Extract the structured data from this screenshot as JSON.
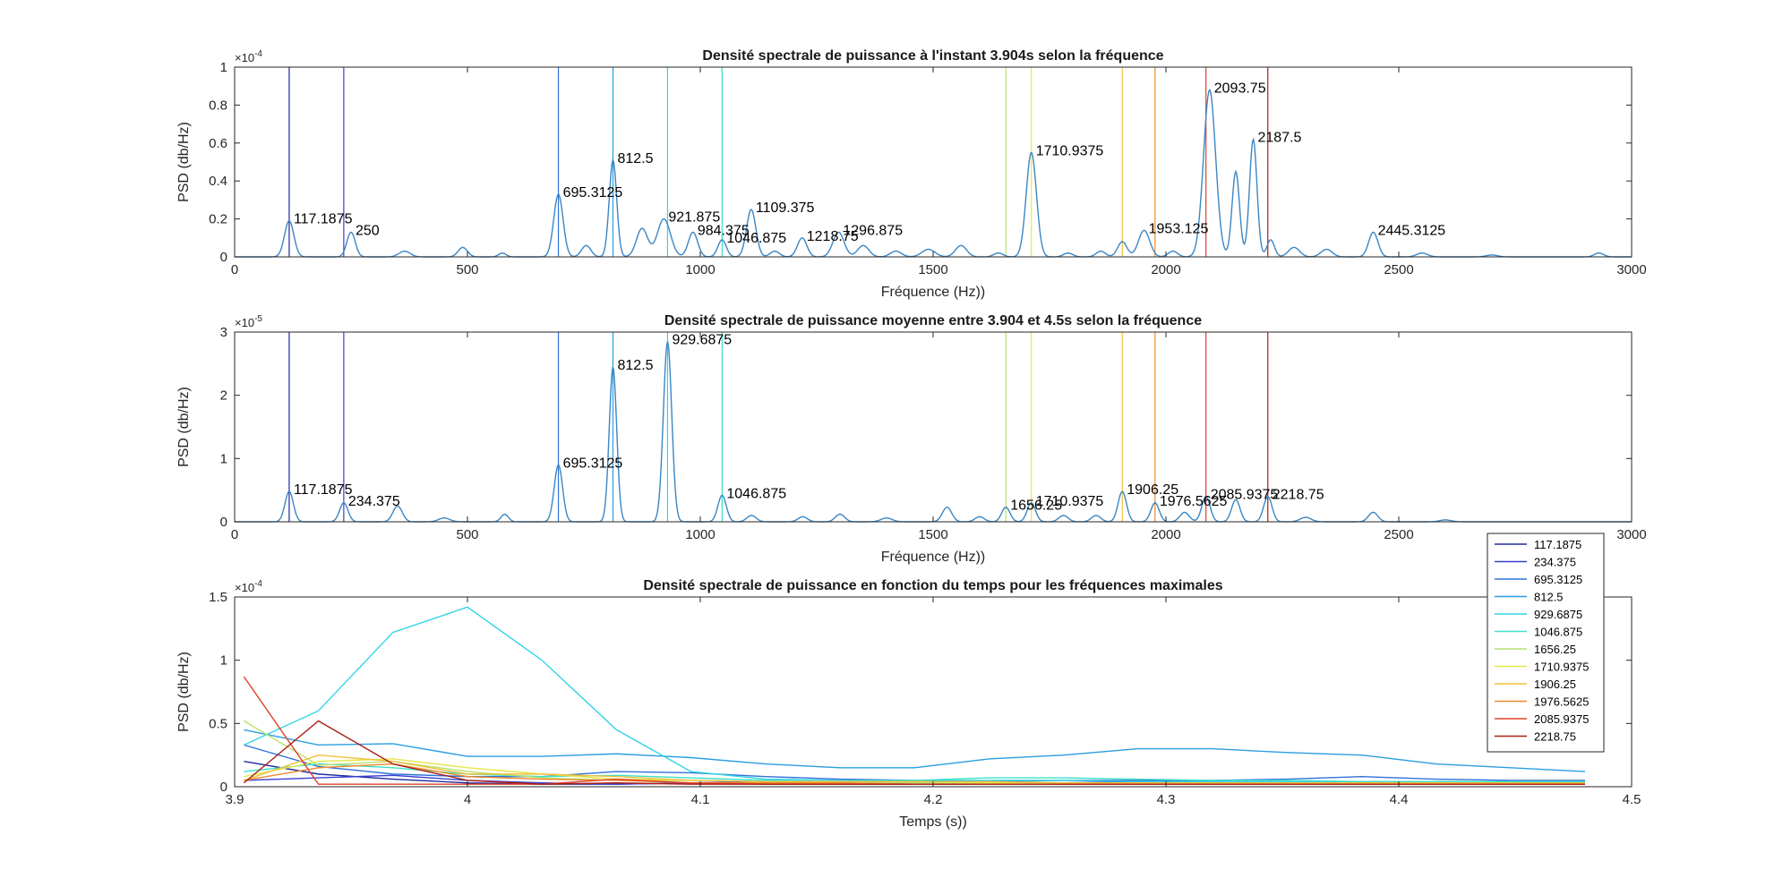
{
  "window_title": "",
  "colors": {
    "psd_line": "#3b86c4",
    "marker_lines": [
      "#1e2a9a",
      "#3a3fd0",
      "#2f72d8",
      "#2a9ee0",
      "#33d4e6",
      "#3ee0c8",
      "#b8e070",
      "#e6e64a",
      "#f0c03a",
      "#f08a2a",
      "#e2402a",
      "#a81e14"
    ]
  },
  "chart_data": [
    {
      "type": "line",
      "title": "Densité spectrale de puissance à l'instant 3.904s selon la fréquence",
      "xlabel": "Fréquence (Hz))",
      "ylabel": "PSD (db/Hz)",
      "exponent_label": "×10",
      "exponent_power": "-4",
      "xlim": [
        0,
        3000
      ],
      "ylim": [
        0,
        1
      ],
      "xticks": [
        "0",
        "500",
        "1000",
        "1500",
        "2000",
        "2500",
        "3000"
      ],
      "yticks": [
        "0",
        "0.2",
        "0.4",
        "0.6",
        "0.8",
        "1"
      ],
      "markers": [
        117.1875,
        234.375,
        695.3125,
        812.5,
        929.6875,
        1046.875,
        1656.25,
        1710.9375,
        1906.25,
        1976.5625,
        2085.9375,
        2218.75
      ],
      "peaks": [
        {
          "x": 117.1875,
          "y": 0.19,
          "w": 10
        },
        {
          "x": 250,
          "y": 0.13,
          "w": 9
        },
        {
          "x": 365,
          "y": 0.03,
          "w": 12
        },
        {
          "x": 490,
          "y": 0.05,
          "w": 10
        },
        {
          "x": 575,
          "y": 0.02,
          "w": 8
        },
        {
          "x": 695.3125,
          "y": 0.33,
          "w": 10
        },
        {
          "x": 755,
          "y": 0.06,
          "w": 10
        },
        {
          "x": 812.5,
          "y": 0.51,
          "w": 8
        },
        {
          "x": 875,
          "y": 0.15,
          "w": 12
        },
        {
          "x": 921.875,
          "y": 0.2,
          "w": 14
        },
        {
          "x": 984.375,
          "y": 0.13,
          "w": 10
        },
        {
          "x": 1046.875,
          "y": 0.09,
          "w": 9
        },
        {
          "x": 1109.375,
          "y": 0.25,
          "w": 10
        },
        {
          "x": 1160,
          "y": 0.03,
          "w": 10
        },
        {
          "x": 1218.75,
          "y": 0.1,
          "w": 10
        },
        {
          "x": 1296.875,
          "y": 0.13,
          "w": 12
        },
        {
          "x": 1350,
          "y": 0.06,
          "w": 12
        },
        {
          "x": 1420,
          "y": 0.03,
          "w": 12
        },
        {
          "x": 1490,
          "y": 0.04,
          "w": 14
        },
        {
          "x": 1560,
          "y": 0.06,
          "w": 12
        },
        {
          "x": 1640,
          "y": 0.02,
          "w": 10
        },
        {
          "x": 1710.9375,
          "y": 0.55,
          "w": 11
        },
        {
          "x": 1790,
          "y": 0.02,
          "w": 10
        },
        {
          "x": 1860,
          "y": 0.03,
          "w": 10
        },
        {
          "x": 1906.25,
          "y": 0.08,
          "w": 10
        },
        {
          "x": 1953.125,
          "y": 0.14,
          "w": 12
        },
        {
          "x": 2015,
          "y": 0.03,
          "w": 10
        },
        {
          "x": 2093.75,
          "y": 0.88,
          "w": 13
        },
        {
          "x": 2150,
          "y": 0.45,
          "w": 8
        },
        {
          "x": 2187.5,
          "y": 0.62,
          "w": 8
        },
        {
          "x": 2225,
          "y": 0.09,
          "w": 8
        },
        {
          "x": 2275,
          "y": 0.05,
          "w": 12
        },
        {
          "x": 2345,
          "y": 0.04,
          "w": 12
        },
        {
          "x": 2445.3125,
          "y": 0.13,
          "w": 10
        },
        {
          "x": 2550,
          "y": 0.02,
          "w": 12
        },
        {
          "x": 2700,
          "y": 0.01,
          "w": 12
        },
        {
          "x": 2930,
          "y": 0.02,
          "w": 10
        }
      ],
      "annotations": [
        {
          "text": "117.1875",
          "x": 117.1875,
          "y": 0.19
        },
        {
          "text": "250",
          "x": 250,
          "y": 0.13
        },
        {
          "text": "695.3125",
          "x": 695.3125,
          "y": 0.33
        },
        {
          "text": "812.5",
          "x": 812.5,
          "y": 0.51
        },
        {
          "text": "921.875",
          "x": 921.875,
          "y": 0.2
        },
        {
          "text": "984.375",
          "x": 984.375,
          "y": 0.13
        },
        {
          "text": "1046.875",
          "x": 1046.875,
          "y": 0.09
        },
        {
          "text": "1109.375",
          "x": 1109.375,
          "y": 0.25
        },
        {
          "text": "1218.75",
          "x": 1218.75,
          "y": 0.1
        },
        {
          "text": "1296.875",
          "x": 1296.875,
          "y": 0.13
        },
        {
          "text": "1710.9375",
          "x": 1710.9375,
          "y": 0.55
        },
        {
          "text": "1953.125",
          "x": 1953.125,
          "y": 0.14
        },
        {
          "text": "2093.75",
          "x": 2093.75,
          "y": 0.88
        },
        {
          "text": "2187.5",
          "x": 2187.5,
          "y": 0.62
        },
        {
          "text": "2445.3125",
          "x": 2445.3125,
          "y": 0.13
        }
      ]
    },
    {
      "type": "line",
      "title": "Densité spectrale de puissance moyenne entre 3.904 et 4.5s selon la fréquence",
      "xlabel": "Fréquence (Hz))",
      "ylabel": "PSD (db/Hz)",
      "exponent_label": "×10",
      "exponent_power": "-5",
      "xlim": [
        0,
        3000
      ],
      "ylim": [
        0,
        3
      ],
      "xticks": [
        "0",
        "500",
        "1000",
        "1500",
        "2000",
        "2500",
        "3000"
      ],
      "yticks": [
        "0",
        "1",
        "2",
        "3"
      ],
      "markers": [
        117.1875,
        234.375,
        695.3125,
        812.5,
        929.6875,
        1046.875,
        1656.25,
        1710.9375,
        1906.25,
        1976.5625,
        2085.9375,
        2218.75
      ],
      "peaks": [
        {
          "x": 117.1875,
          "y": 0.48,
          "w": 9
        },
        {
          "x": 234.375,
          "y": 0.3,
          "w": 9
        },
        {
          "x": 350,
          "y": 0.25,
          "w": 10
        },
        {
          "x": 450,
          "y": 0.06,
          "w": 12
        },
        {
          "x": 580,
          "y": 0.12,
          "w": 8
        },
        {
          "x": 695.3125,
          "y": 0.9,
          "w": 9
        },
        {
          "x": 812.5,
          "y": 2.45,
          "w": 8
        },
        {
          "x": 929.6875,
          "y": 2.85,
          "w": 9
        },
        {
          "x": 1046.875,
          "y": 0.42,
          "w": 9
        },
        {
          "x": 1110,
          "y": 0.1,
          "w": 10
        },
        {
          "x": 1220,
          "y": 0.08,
          "w": 10
        },
        {
          "x": 1300,
          "y": 0.12,
          "w": 10
        },
        {
          "x": 1400,
          "y": 0.06,
          "w": 12
        },
        {
          "x": 1530,
          "y": 0.23,
          "w": 10
        },
        {
          "x": 1600,
          "y": 0.08,
          "w": 10
        },
        {
          "x": 1656.25,
          "y": 0.23,
          "w": 9
        },
        {
          "x": 1710.9375,
          "y": 0.3,
          "w": 9
        },
        {
          "x": 1780,
          "y": 0.1,
          "w": 10
        },
        {
          "x": 1850,
          "y": 0.1,
          "w": 10
        },
        {
          "x": 1906.25,
          "y": 0.48,
          "w": 9
        },
        {
          "x": 1976.5625,
          "y": 0.3,
          "w": 9
        },
        {
          "x": 2040,
          "y": 0.15,
          "w": 10
        },
        {
          "x": 2085.9375,
          "y": 0.4,
          "w": 9
        },
        {
          "x": 2150,
          "y": 0.35,
          "w": 9
        },
        {
          "x": 2218.75,
          "y": 0.4,
          "w": 9
        },
        {
          "x": 2300,
          "y": 0.07,
          "w": 12
        },
        {
          "x": 2445,
          "y": 0.15,
          "w": 10
        },
        {
          "x": 2600,
          "y": 0.03,
          "w": 12
        }
      ],
      "annotations": [
        {
          "text": "117.1875",
          "x": 117.1875,
          "y": 0.48
        },
        {
          "text": "234.375",
          "x": 234.375,
          "y": 0.3
        },
        {
          "text": "695.3125",
          "x": 695.3125,
          "y": 0.9
        },
        {
          "text": "812.5",
          "x": 812.5,
          "y": 2.45
        },
        {
          "text": "929.6875",
          "x": 929.6875,
          "y": 2.85
        },
        {
          "text": "1046.875",
          "x": 1046.875,
          "y": 0.42
        },
        {
          "text": "1656.25",
          "x": 1656.25,
          "y": 0.23
        },
        {
          "text": "1710.9375",
          "x": 1710.9375,
          "y": 0.3
        },
        {
          "text": "1906.25",
          "x": 1906.25,
          "y": 0.48
        },
        {
          "text": "1976.5625",
          "x": 1976.5625,
          "y": 0.3
        },
        {
          "text": "2085.9375",
          "x": 2085.9375,
          "y": 0.4
        },
        {
          "text": "2218.75",
          "x": 2218.75,
          "y": 0.4
        }
      ]
    },
    {
      "type": "line",
      "title": "Densité spectrale de puissance en fonction du temps pour les fréquences maximales",
      "xlabel": "Temps (s))",
      "ylabel": "PSD (db/Hz)",
      "exponent_label": "×10",
      "exponent_power": "-4",
      "xlim": [
        3.9,
        4.5
      ],
      "ylim": [
        0,
        1.5
      ],
      "xticks": [
        "3.9",
        "4",
        "4.1",
        "4.2",
        "4.3",
        "4.4",
        "4.5"
      ],
      "yticks": [
        "0",
        "0.5",
        "1",
        "1.5"
      ],
      "legend": "top-right",
      "x": [
        3.904,
        3.936,
        3.968,
        4.0,
        4.032,
        4.064,
        4.096,
        4.128,
        4.16,
        4.192,
        4.224,
        4.256,
        4.288,
        4.32,
        4.352,
        4.384,
        4.416,
        4.448,
        4.48
      ],
      "series": [
        {
          "name": "117.1875",
          "values": [
            0.2,
            0.1,
            0.06,
            0.03,
            0.02,
            0.02,
            0.03,
            0.02,
            0.02,
            0.02,
            0.02,
            0.02,
            0.02,
            0.02,
            0.02,
            0.02,
            0.02,
            0.02,
            0.02
          ]
        },
        {
          "name": "234.375",
          "values": [
            0.05,
            0.07,
            0.09,
            0.05,
            0.03,
            0.02,
            0.03,
            0.04,
            0.03,
            0.02,
            0.02,
            0.03,
            0.04,
            0.04,
            0.03,
            0.02,
            0.02,
            0.02,
            0.02
          ]
        },
        {
          "name": "695.3125",
          "values": [
            0.33,
            0.16,
            0.1,
            0.08,
            0.08,
            0.12,
            0.11,
            0.08,
            0.06,
            0.05,
            0.04,
            0.05,
            0.05,
            0.05,
            0.06,
            0.08,
            0.06,
            0.05,
            0.05
          ]
        },
        {
          "name": "812.5",
          "values": [
            0.45,
            0.33,
            0.34,
            0.24,
            0.24,
            0.26,
            0.23,
            0.18,
            0.15,
            0.15,
            0.22,
            0.25,
            0.3,
            0.3,
            0.27,
            0.25,
            0.18,
            0.15,
            0.12
          ]
        },
        {
          "name": "929.6875",
          "values": [
            0.33,
            0.6,
            1.22,
            1.42,
            1.0,
            0.45,
            0.12,
            0.06,
            0.05,
            0.05,
            0.05,
            0.05,
            0.04,
            0.04,
            0.04,
            0.04,
            0.04,
            0.04,
            0.04
          ]
        },
        {
          "name": "1046.875",
          "values": [
            0.12,
            0.18,
            0.15,
            0.1,
            0.08,
            0.09,
            0.07,
            0.05,
            0.04,
            0.05,
            0.07,
            0.07,
            0.06,
            0.05,
            0.05,
            0.04,
            0.04,
            0.04,
            0.04
          ]
        },
        {
          "name": "1656.25",
          "values": [
            0.52,
            0.17,
            0.2,
            0.12,
            0.07,
            0.05,
            0.05,
            0.04,
            0.04,
            0.03,
            0.03,
            0.03,
            0.03,
            0.03,
            0.03,
            0.03,
            0.03,
            0.03,
            0.03
          ]
        },
        {
          "name": "1710.9375",
          "values": [
            0.08,
            0.2,
            0.22,
            0.15,
            0.1,
            0.06,
            0.05,
            0.04,
            0.04,
            0.04,
            0.03,
            0.03,
            0.03,
            0.03,
            0.03,
            0.03,
            0.03,
            0.03,
            0.03
          ]
        },
        {
          "name": "1906.25",
          "values": [
            0.05,
            0.25,
            0.2,
            0.1,
            0.1,
            0.08,
            0.05,
            0.04,
            0.04,
            0.04,
            0.04,
            0.03,
            0.03,
            0.03,
            0.03,
            0.03,
            0.03,
            0.03,
            0.03
          ]
        },
        {
          "name": "1976.5625",
          "values": [
            0.05,
            0.15,
            0.18,
            0.08,
            0.06,
            0.05,
            0.03,
            0.03,
            0.03,
            0.02,
            0.02,
            0.02,
            0.02,
            0.02,
            0.02,
            0.02,
            0.02,
            0.02,
            0.02
          ]
        },
        {
          "name": "2085.9375",
          "values": [
            0.87,
            0.02,
            0.02,
            0.02,
            0.02,
            0.06,
            0.03,
            0.02,
            0.02,
            0.02,
            0.02,
            0.02,
            0.02,
            0.02,
            0.02,
            0.02,
            0.02,
            0.02,
            0.02
          ]
        },
        {
          "name": "2218.75",
          "values": [
            0.03,
            0.52,
            0.18,
            0.05,
            0.02,
            0.03,
            0.02,
            0.02,
            0.02,
            0.02,
            0.02,
            0.02,
            0.02,
            0.02,
            0.02,
            0.02,
            0.02,
            0.02,
            0.02
          ]
        }
      ]
    }
  ]
}
